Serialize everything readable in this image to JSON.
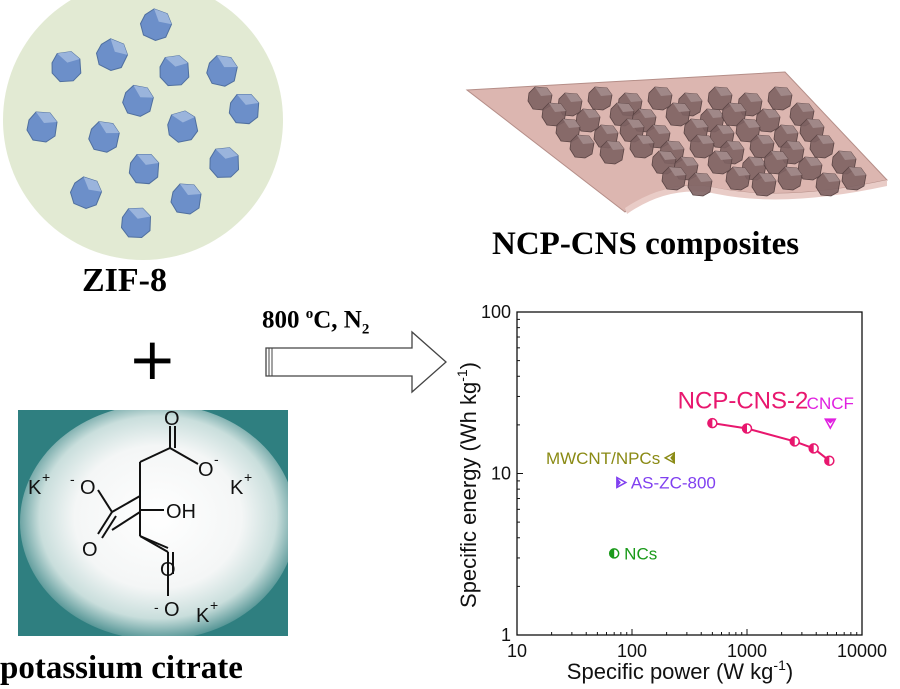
{
  "zif": {
    "label": "ZIF-8",
    "circle_color": "#e2ead3",
    "crystal_color": "#6c8fc9"
  },
  "composite": {
    "label": "NCP-CNS composites",
    "sheet_color": "#dcb6b0",
    "particle_color": "#7d6262"
  },
  "plus": "+",
  "condition": {
    "temp": "800 ",
    "deg": "o",
    "unit": "C, N",
    "sub": "2"
  },
  "citrate": {
    "label": "potassium citrate",
    "structure_labels": {
      "k_left": "K",
      "k_right": "K",
      "k_bottom": "K",
      "k_sup": "+",
      "o_minus_left": "O",
      "o_minus_right": "O",
      "o_minus_bottom": "O",
      "minus": "-",
      "o_top": "O",
      "o_left": "O",
      "oh": "OH",
      "o_bottom": "O"
    }
  },
  "chart_data": {
    "type": "scatter",
    "xscale": "log",
    "yscale": "log",
    "xlim": [
      10,
      10000
    ],
    "ylim": [
      1,
      100
    ],
    "xticks": [
      "10",
      "100",
      "1000",
      "10000"
    ],
    "yticks": [
      "1",
      "10",
      "100"
    ],
    "xlabel": "Specific power (W kg",
    "xlabel_sup": "-1",
    "xlabel_end": ")",
    "ylabel": "Specific energy (Wh kg",
    "ylabel_sup": "-1",
    "ylabel_end": ")",
    "series": [
      {
        "name": "NCP-CNS-2",
        "color": "#e8176e",
        "marker": "half-circle",
        "line": true,
        "points": [
          [
            500,
            20.5
          ],
          [
            1000,
            19.0
          ],
          [
            2600,
            15.8
          ],
          [
            3800,
            14.3
          ],
          [
            5200,
            12.0
          ]
        ]
      },
      {
        "name": "CNCF",
        "color": "#e020e0",
        "marker": "triangle-down",
        "points": [
          [
            5300,
            20.5
          ]
        ]
      },
      {
        "name": "MWCNT/NPCs",
        "color": "#8a8a14",
        "marker": "triangle-left",
        "points": [
          [
            215,
            12.5
          ]
        ]
      },
      {
        "name": "AS-ZC-800",
        "color": "#8040f0",
        "marker": "triangle-right",
        "points": [
          [
            80,
            8.8
          ]
        ]
      },
      {
        "name": "NCs",
        "color": "#1a9a1a",
        "marker": "half-circle",
        "points": [
          [
            70,
            3.2
          ]
        ]
      }
    ]
  }
}
